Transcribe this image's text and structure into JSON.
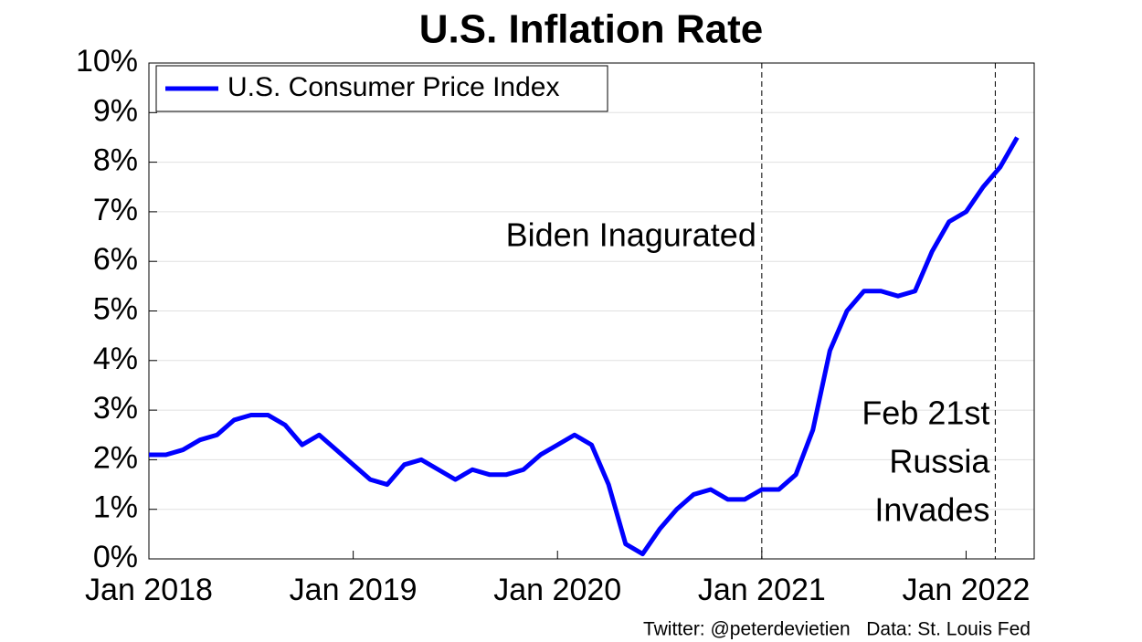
{
  "chart_data": {
    "type": "line",
    "title": "U.S. Inflation Rate",
    "x": [
      "2018-01",
      "2018-02",
      "2018-03",
      "2018-04",
      "2018-05",
      "2018-06",
      "2018-07",
      "2018-08",
      "2018-09",
      "2018-10",
      "2018-11",
      "2018-12",
      "2019-01",
      "2019-02",
      "2019-03",
      "2019-04",
      "2019-05",
      "2019-06",
      "2019-07",
      "2019-08",
      "2019-09",
      "2019-10",
      "2019-11",
      "2019-12",
      "2020-01",
      "2020-02",
      "2020-03",
      "2020-04",
      "2020-05",
      "2020-06",
      "2020-07",
      "2020-08",
      "2020-09",
      "2020-10",
      "2020-11",
      "2020-12",
      "2021-01",
      "2021-02",
      "2021-03",
      "2021-04",
      "2021-05",
      "2021-06",
      "2021-07",
      "2021-08",
      "2021-09",
      "2021-10",
      "2021-11",
      "2021-12",
      "2022-01",
      "2022-02",
      "2022-03",
      "2022-04"
    ],
    "series": [
      {
        "name": "U.S. Consumer Price Index",
        "color": "#0000ff",
        "values": [
          2.1,
          2.1,
          2.2,
          2.4,
          2.5,
          2.8,
          2.9,
          2.9,
          2.7,
          2.3,
          2.5,
          2.2,
          1.9,
          1.6,
          1.5,
          1.9,
          2.0,
          1.8,
          1.6,
          1.8,
          1.7,
          1.7,
          1.8,
          2.1,
          2.3,
          2.5,
          2.3,
          1.5,
          0.3,
          0.1,
          0.6,
          1.0,
          1.3,
          1.4,
          1.2,
          1.2,
          1.4,
          1.4,
          1.7,
          2.6,
          4.2,
          5.0,
          5.4,
          5.4,
          5.3,
          5.4,
          6.2,
          6.8,
          7.0,
          7.5,
          7.9,
          8.5
        ]
      }
    ],
    "xlim": [
      "2018-01",
      "2022-05"
    ],
    "xticks": [
      {
        "value": "2018-01",
        "label": "Jan 2018"
      },
      {
        "value": "2019-01",
        "label": "Jan 2019"
      },
      {
        "value": "2020-01",
        "label": "Jan 2020"
      },
      {
        "value": "2021-01",
        "label": "Jan 2021"
      },
      {
        "value": "2022-01",
        "label": "Jan 2022"
      }
    ],
    "ylim": [
      0,
      10
    ],
    "yticks": [
      {
        "value": 0,
        "label": "0%"
      },
      {
        "value": 1,
        "label": "1%"
      },
      {
        "value": 2,
        "label": "2%"
      },
      {
        "value": 3,
        "label": "3%"
      },
      {
        "value": 4,
        "label": "4%"
      },
      {
        "value": 5,
        "label": "5%"
      },
      {
        "value": 6,
        "label": "6%"
      },
      {
        "value": 7,
        "label": "7%"
      },
      {
        "value": 8,
        "label": "8%"
      },
      {
        "value": 9,
        "label": "9%"
      },
      {
        "value": 10,
        "label": "10%"
      }
    ],
    "grid": true,
    "legend": "upper-left",
    "annotations": [
      {
        "x": "2021-01",
        "text": [
          "Biden Inagurated"
        ]
      },
      {
        "x": "2022-02-21",
        "text": [
          "Feb 21st",
          "Russia",
          "Invades"
        ]
      }
    ],
    "source": "Twitter: @peterdevietien   Data: St. Louis Fed"
  }
}
